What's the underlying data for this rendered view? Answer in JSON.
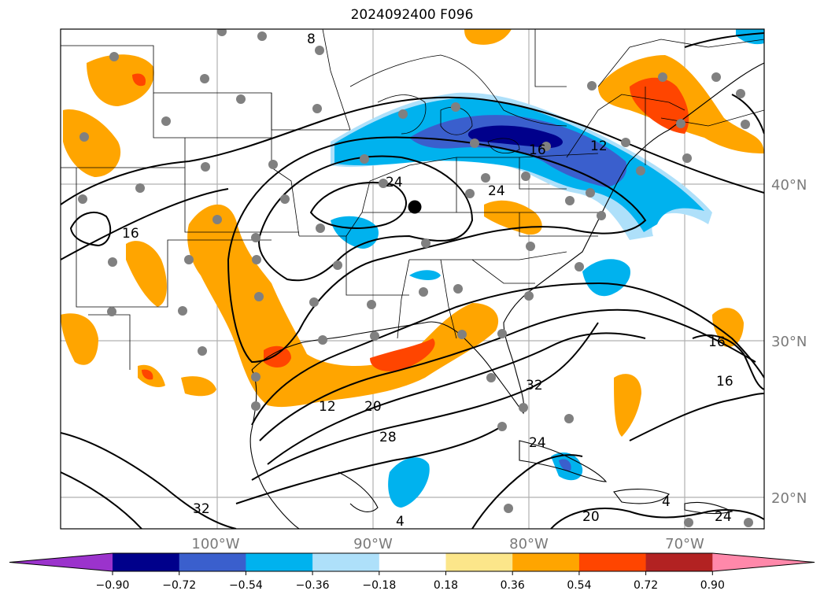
{
  "title": "2024092400 F096",
  "longitude_labels": [
    "100°W",
    "90°W",
    "80°W",
    "70°W"
  ],
  "latitude_labels": [
    "40°N",
    "30°N",
    "20°N"
  ],
  "colorbar": {
    "tick_labels": [
      "−0.90",
      "−0.72",
      "−0.54",
      "−0.36",
      "−0.18",
      "0.18",
      "0.36",
      "0.54",
      "0.72",
      "0.90"
    ],
    "colors": [
      "#9b33cc",
      "#00008b",
      "#3a5fcd",
      "#00b2ee",
      "#aee0fa",
      "#ffffff",
      "#fce68a",
      "#ffa500",
      "#ff4500",
      "#b22222",
      "#ff88aa"
    ]
  },
  "contour_labels": [
    "8",
    "24",
    "16",
    "12",
    "24",
    "16",
    "16",
    "16",
    "12",
    "20",
    "28",
    "32",
    "24",
    "32",
    "20",
    "24",
    "4",
    "4"
  ],
  "fill_colors": {
    "orange": "#ffa500",
    "red_orange": "#ff4500",
    "yellow": "#fce68a",
    "dark_blue": "#00008b",
    "med_blue": "#3a5fcd",
    "sky_blue": "#00b2ee",
    "light_blue": "#aee0fa",
    "station": "#808080"
  }
}
